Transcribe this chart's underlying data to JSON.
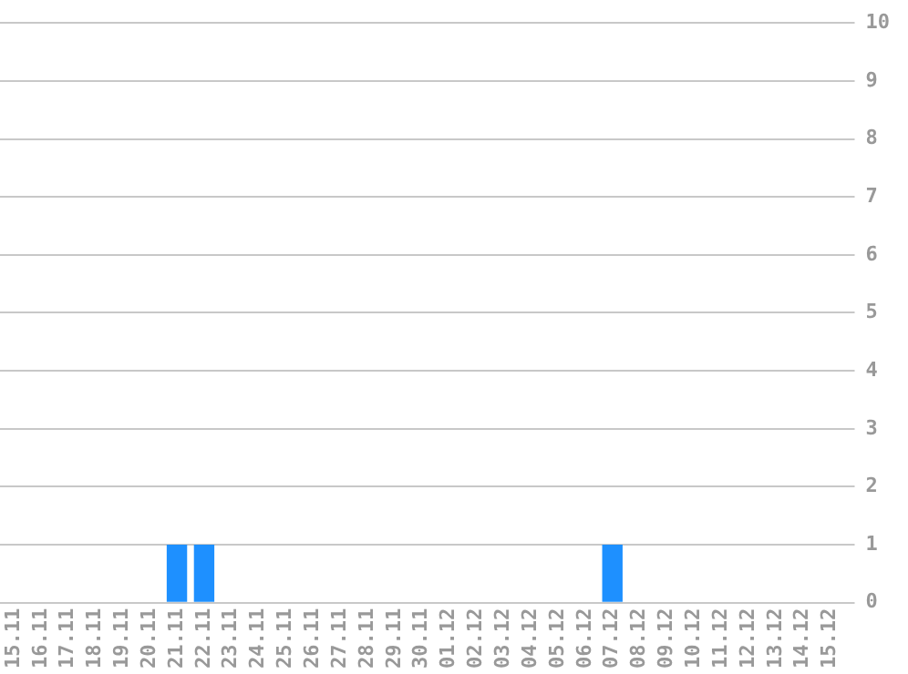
{
  "chart_data": {
    "type": "bar",
    "categories": [
      "15.11",
      "16.11",
      "17.11",
      "18.11",
      "19.11",
      "20.11",
      "21.11",
      "22.11",
      "23.11",
      "24.11",
      "25.11",
      "26.11",
      "27.11",
      "28.11",
      "29.11",
      "30.11",
      "01.12",
      "02.12",
      "03.12",
      "04.12",
      "05.12",
      "06.12",
      "07.12",
      "08.12",
      "09.12",
      "10.12",
      "11.12",
      "12.12",
      "13.12",
      "14.12",
      "15.12"
    ],
    "values": [
      0,
      0,
      0,
      0,
      0,
      0,
      1,
      1,
      0,
      0,
      0,
      0,
      0,
      0,
      0,
      0,
      0,
      0,
      0,
      0,
      0,
      0,
      1,
      0,
      0,
      0,
      0,
      0,
      0,
      0,
      0
    ],
    "color": "#1e90ff",
    "ylim": [
      0,
      10
    ],
    "yticks": [
      0,
      1,
      2,
      3,
      4,
      5,
      6,
      7,
      8,
      9,
      10
    ],
    "grid": "y",
    "legend": false
  }
}
